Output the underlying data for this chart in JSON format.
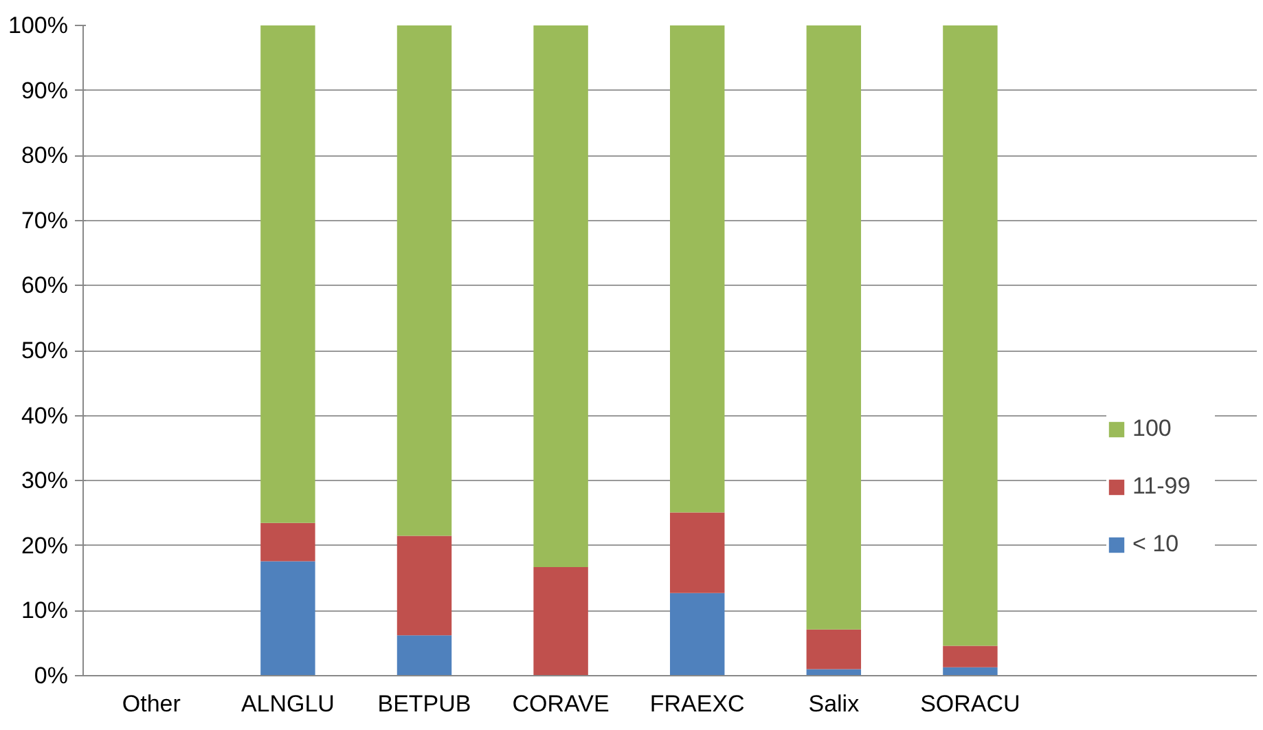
{
  "chart_data": {
    "type": "bar",
    "stacked": true,
    "categories": [
      "Other",
      "ALNGLU",
      "BETPUB",
      "CORAVE",
      "FRAEXC",
      "Salix",
      "SORACU"
    ],
    "series": [
      {
        "name": "< 10",
        "color": "#4f81bd",
        "values": [
          null,
          17.6,
          6.2,
          0,
          12.7,
          1.0,
          1.3
        ]
      },
      {
        "name": "11-99",
        "color": "#c0504d",
        "values": [
          null,
          5.9,
          15.3,
          16.7,
          12.4,
          6.1,
          3.3
        ]
      },
      {
        "name": "100",
        "color": "#9bbb59",
        "values": [
          null,
          76.5,
          78.5,
          83.3,
          74.9,
          92.9,
          95.4
        ]
      }
    ],
    "ylim": [
      0,
      100
    ],
    "yticks": [
      {
        "value": 0,
        "label": "0%"
      },
      {
        "value": 10,
        "label": "10%"
      },
      {
        "value": 20,
        "label": "20%"
      },
      {
        "value": 30,
        "label": "30%"
      },
      {
        "value": 40,
        "label": "40%"
      },
      {
        "value": 50,
        "label": "50%"
      },
      {
        "value": 60,
        "label": "60%"
      },
      {
        "value": 70,
        "label": "70%"
      },
      {
        "value": 80,
        "label": "80%"
      },
      {
        "value": 90,
        "label": "90%"
      },
      {
        "value": 100,
        "label": "100%"
      }
    ],
    "grid": "y",
    "legend": "right"
  }
}
